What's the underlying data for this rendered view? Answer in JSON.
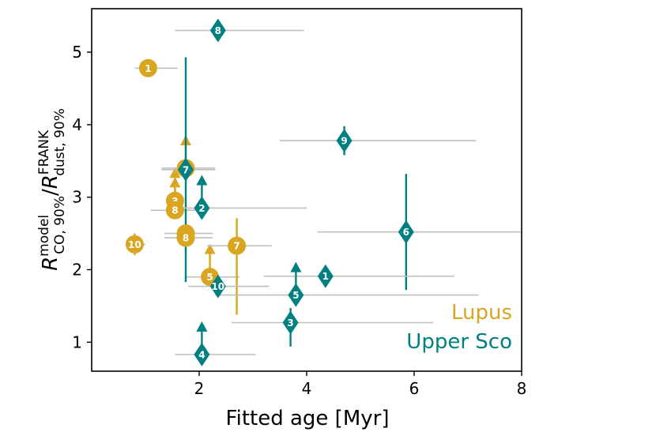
{
  "chart_data": {
    "type": "scatter",
    "xlabel": "Fitted age [Myr]",
    "ylabel": {
      "base": "R",
      "numerator_sup": "model",
      "numerator_sub": "CO, 90%",
      "separator": "/",
      "denominator_sup": "FRANK",
      "denominator_sub": "dust, 90%"
    },
    "xlim": [
      0.0,
      8.0
    ],
    "ylim": [
      0.6,
      5.6
    ],
    "xticks": [
      2,
      4,
      6,
      8
    ],
    "yticks": [
      1,
      2,
      3,
      4,
      5
    ],
    "xtick_labels": [
      "2",
      "4",
      "6",
      "8"
    ],
    "ytick_labels": [
      "1",
      "2",
      "3",
      "4",
      "5"
    ],
    "grid": false,
    "legend_position": "bottom-right",
    "series": [
      {
        "name": "Lupus",
        "color": "#DAA520",
        "marker": "circle",
        "points": [
          {
            "label": "1",
            "x": 1.05,
            "y": 4.78,
            "xerr": [
              0.25,
              0.55
            ],
            "yerr": [
              0.0,
              0.0
            ],
            "lower_limit": false
          },
          {
            "label": "2",
            "x": 1.75,
            "y": 3.4,
            "xerr": [
              0.45,
              0.55
            ],
            "yerr": [
              0.0,
              0.0
            ],
            "lower_limit": true
          },
          {
            "label": "3",
            "x": 1.55,
            "y": 2.95,
            "xerr": [
              0.0,
              0.0
            ],
            "yerr": [
              0.0,
              0.0
            ],
            "lower_limit": true
          },
          {
            "label": "4",
            "x": 1.75,
            "y": 2.5,
            "xerr": [
              0.4,
              0.5
            ],
            "yerr": [
              0.0,
              0.0
            ],
            "lower_limit": false
          },
          {
            "label": "5",
            "x": 2.2,
            "y": 1.9,
            "xerr": [
              0.45,
              0.55
            ],
            "yerr": [
              0.0,
              0.0
            ],
            "lower_limit": true
          },
          {
            "label": "7",
            "x": 2.7,
            "y": 2.33,
            "xerr": [
              0.55,
              0.65
            ],
            "yerr": [
              0.95,
              0.38
            ],
            "lower_limit": false
          },
          {
            "label": "8",
            "x": 1.55,
            "y": 2.82,
            "xerr": [
              0.45,
              0.55
            ],
            "yerr": [
              0.0,
              0.0
            ],
            "lower_limit": true
          },
          {
            "label": "8",
            "x": 1.75,
            "y": 2.44,
            "xerr": [
              0.4,
              0.5
            ],
            "yerr": [
              0.0,
              0.0
            ],
            "lower_limit": false
          },
          {
            "label": "10",
            "x": 0.8,
            "y": 2.35,
            "xerr": [
              0.15,
              0.2
            ],
            "yerr": [
              0.15,
              0.15
            ],
            "lower_limit": false
          }
        ]
      },
      {
        "name": "Upper Sco",
        "color": "#008080",
        "marker": "diamond",
        "points": [
          {
            "label": "8",
            "x": 2.35,
            "y": 5.3,
            "xerr": [
              0.8,
              1.6
            ],
            "yerr": [
              0.0,
              0.0
            ],
            "lower_limit": false
          },
          {
            "label": "7",
            "x": 1.75,
            "y": 3.38,
            "xerr": [
              0.45,
              0.55
            ],
            "yerr": [
              1.55,
              1.55
            ],
            "lower_limit": false
          },
          {
            "label": "9",
            "x": 4.7,
            "y": 3.78,
            "xerr": [
              1.2,
              2.45
            ],
            "yerr": [
              0.2,
              0.2
            ],
            "lower_limit": false
          },
          {
            "label": "2",
            "x": 2.05,
            "y": 2.85,
            "xerr": [
              0.55,
              1.95
            ],
            "yerr": [
              0.0,
              0.0
            ],
            "lower_limit": true
          },
          {
            "label": "6",
            "x": 5.85,
            "y": 2.52,
            "xerr": [
              1.65,
              2.4
            ],
            "yerr": [
              0.8,
              0.8
            ],
            "lower_limit": false
          },
          {
            "label": "1",
            "x": 4.35,
            "y": 1.91,
            "xerr": [
              1.15,
              2.4
            ],
            "yerr": [
              0.0,
              0.0
            ],
            "lower_limit": false
          },
          {
            "label": "5",
            "x": 3.8,
            "y": 1.65,
            "xerr": [
              1.5,
              3.4
            ],
            "yerr": [
              0.0,
              0.0
            ],
            "lower_limit": true
          },
          {
            "label": "10",
            "x": 2.35,
            "y": 1.77,
            "xerr": [
              0.55,
              0.95
            ],
            "yerr": [
              0.0,
              0.0
            ],
            "lower_limit": false
          },
          {
            "label": "3",
            "x": 3.7,
            "y": 1.27,
            "xerr": [
              1.1,
              2.65
            ],
            "yerr": [
              0.33,
              0.2
            ],
            "lower_limit": false
          },
          {
            "label": "4",
            "x": 2.05,
            "y": 0.83,
            "xerr": [
              0.5,
              1.0
            ],
            "yerr": [
              0.0,
              0.0
            ],
            "lower_limit": true
          }
        ]
      }
    ]
  }
}
